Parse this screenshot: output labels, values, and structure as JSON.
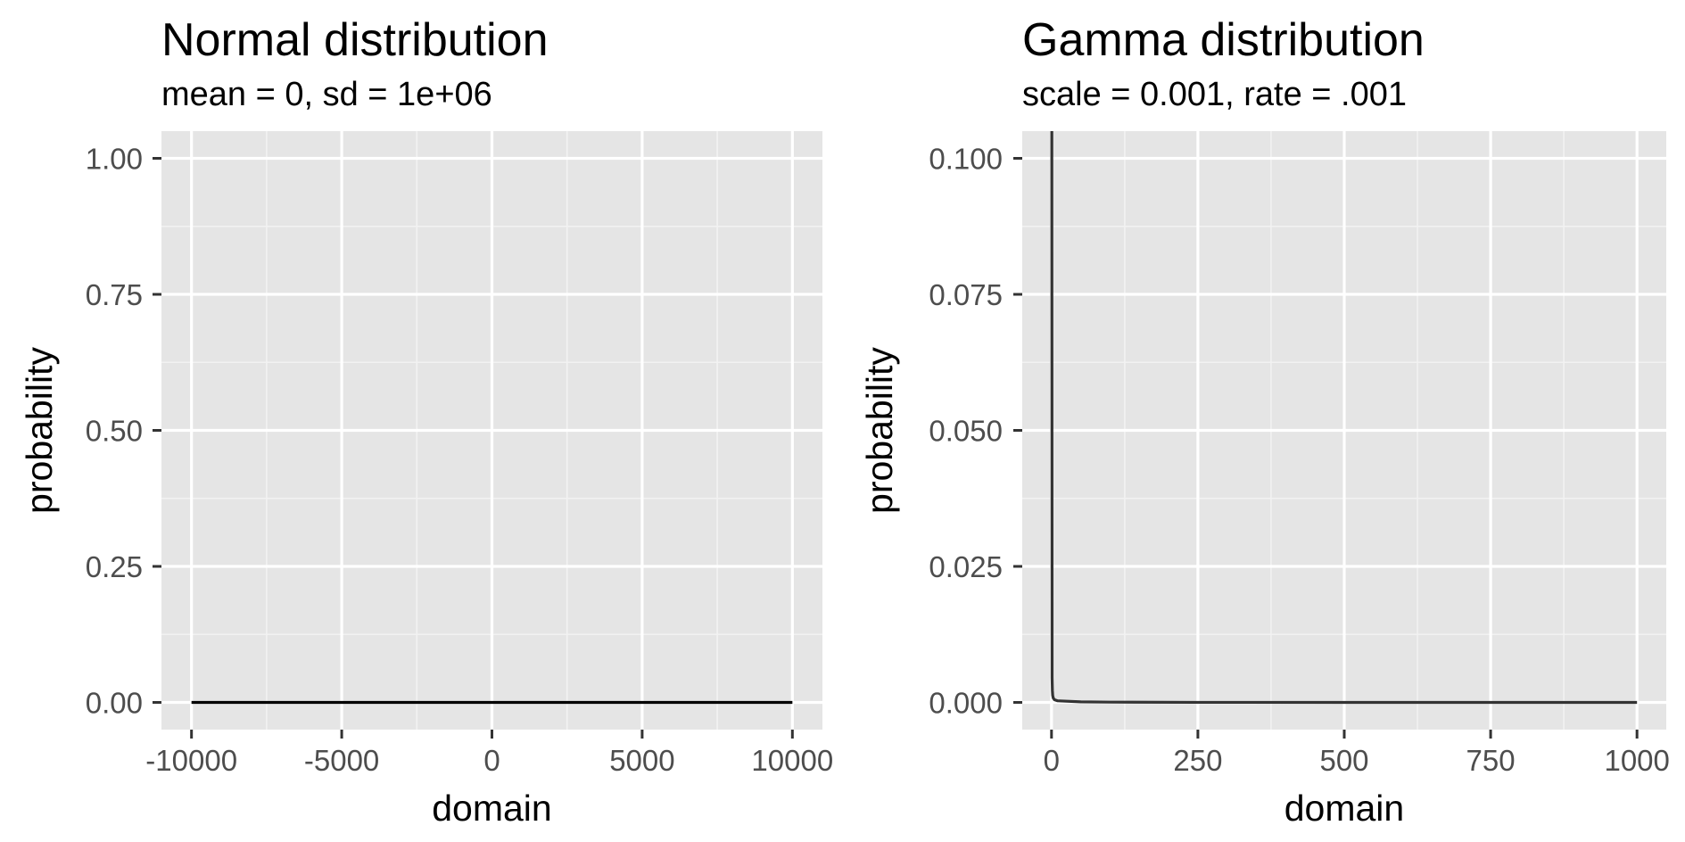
{
  "chart_data": [
    {
      "type": "line",
      "title": "Normal distribution",
      "subtitle": "mean = 0, sd = 1e+06",
      "xlabel": "domain",
      "ylabel": "probability",
      "xlim": [
        -11000,
        11000
      ],
      "ylim": [
        -0.05,
        1.05
      ],
      "xticks": [
        -10000,
        -5000,
        0,
        5000,
        10000
      ],
      "xtick_labels": [
        "-10000",
        "-5000",
        "0",
        "5000",
        "10000"
      ],
      "yticks": [
        0,
        0.25,
        0.5,
        0.75,
        1.0
      ],
      "ytick_labels": [
        "0.00",
        "0.25",
        "0.50",
        "0.75",
        "1.00"
      ],
      "grid": true,
      "line_color": "#000000",
      "series": [
        {
          "x": [
            -10000,
            -7500,
            -5000,
            -2500,
            0,
            2500,
            5000,
            7500,
            10000
          ],
          "y": [
            0,
            0,
            0,
            0,
            0,
            0,
            0,
            0,
            0
          ]
        }
      ]
    },
    {
      "type": "line",
      "title": "Gamma distribution",
      "subtitle": "scale = 0.001, rate = .001",
      "xlabel": "domain",
      "ylabel": "probability",
      "xlim": [
        -50,
        1050
      ],
      "ylim": [
        -0.005,
        0.105
      ],
      "xticks": [
        0,
        250,
        500,
        750,
        1000
      ],
      "xtick_labels": [
        "0",
        "250",
        "500",
        "750",
        "1000"
      ],
      "yticks": [
        0,
        0.025,
        0.05,
        0.075,
        0.1
      ],
      "ytick_labels": [
        "0.000",
        "0.025",
        "0.050",
        "0.075",
        "0.100"
      ],
      "grid": true,
      "line_color": "#333333",
      "series": [
        {
          "x": [
            0.5,
            1,
            1.5,
            2,
            3,
            5,
            10,
            50,
            100,
            250,
            500,
            750,
            1000
          ],
          "y": [
            0.105,
            0.0045,
            0.0022,
            0.0013,
            0.0008,
            0.0005,
            0.0003,
            0.0001,
            5e-05,
            1e-05,
            0.0,
            0.0,
            0.0
          ]
        }
      ]
    }
  ]
}
